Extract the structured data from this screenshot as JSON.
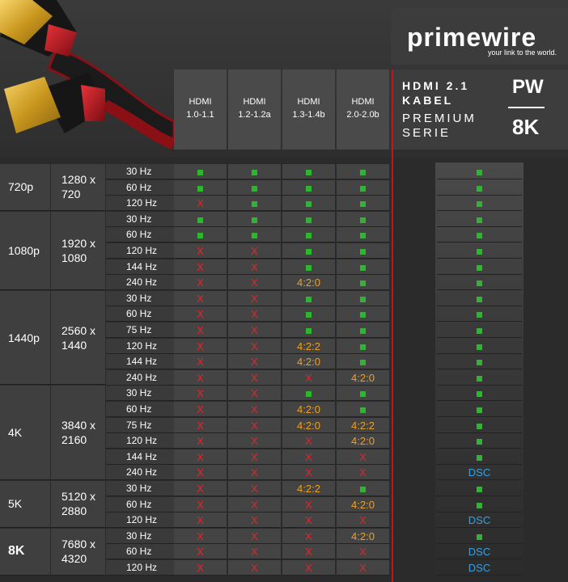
{
  "brand": {
    "logo": "primewire",
    "tagline": "your link to the world.",
    "mark": "PW"
  },
  "premium": {
    "line1": "HDMI 2.1",
    "line2": "KABEL",
    "line3": "PREMIUM",
    "line4": "SERIE",
    "resolution": "8K"
  },
  "columns": [
    {
      "name": "HDMI",
      "version": "1.0-1.1"
    },
    {
      "name": "HDMI",
      "version": "1.2-1.2a"
    },
    {
      "name": "HDMI",
      "version": "1.3-1.4b"
    },
    {
      "name": "HDMI",
      "version": "2.0-2.0b"
    }
  ],
  "groups": [
    {
      "label": "720p",
      "res1": "1280 x",
      "res2": "720",
      "rows": [
        {
          "hz": "30 Hz",
          "v": [
            "ok",
            "ok",
            "ok",
            "ok",
            "ok"
          ]
        },
        {
          "hz": "60 Hz",
          "v": [
            "ok",
            "ok",
            "ok",
            "ok",
            "ok"
          ]
        },
        {
          "hz": "120 Hz",
          "v": [
            "x",
            "ok",
            "ok",
            "ok",
            "ok"
          ]
        }
      ]
    },
    {
      "label": "1080p",
      "res1": "1920 x",
      "res2": "1080",
      "rows": [
        {
          "hz": "30 Hz",
          "v": [
            "ok",
            "ok",
            "ok",
            "ok",
            "ok"
          ]
        },
        {
          "hz": "60 Hz",
          "v": [
            "ok",
            "ok",
            "ok",
            "ok",
            "ok"
          ]
        },
        {
          "hz": "120 Hz",
          "v": [
            "x",
            "x",
            "ok",
            "ok",
            "ok"
          ]
        },
        {
          "hz": "144 Hz",
          "v": [
            "x",
            "x",
            "ok",
            "ok",
            "ok"
          ]
        },
        {
          "hz": "240 Hz",
          "v": [
            "x",
            "x",
            "4:2:0",
            "ok",
            "ok"
          ]
        }
      ]
    },
    {
      "label": "1440p",
      "res1": "2560 x",
      "res2": "1440",
      "rows": [
        {
          "hz": "30 Hz",
          "v": [
            "x",
            "x",
            "ok",
            "ok",
            "ok"
          ]
        },
        {
          "hz": "60 Hz",
          "v": [
            "x",
            "x",
            "ok",
            "ok",
            "ok"
          ]
        },
        {
          "hz": "75 Hz",
          "v": [
            "x",
            "x",
            "ok",
            "ok",
            "ok"
          ]
        },
        {
          "hz": "120 Hz",
          "v": [
            "x",
            "x",
            "4:2:2",
            "ok",
            "ok"
          ]
        },
        {
          "hz": "144 Hz",
          "v": [
            "x",
            "x",
            "4:2:0",
            "ok",
            "ok"
          ]
        },
        {
          "hz": "240 Hz",
          "v": [
            "x",
            "x",
            "x",
            "4:2:0",
            "ok"
          ]
        }
      ]
    },
    {
      "label": "4K",
      "res1": "3840 x",
      "res2": "2160",
      "rows": [
        {
          "hz": "30 Hz",
          "v": [
            "x",
            "x",
            "ok",
            "ok",
            "ok"
          ]
        },
        {
          "hz": "60 Hz",
          "v": [
            "x",
            "x",
            "4:2:0",
            "ok",
            "ok"
          ]
        },
        {
          "hz": "75 Hz",
          "v": [
            "x",
            "x",
            "4:2:0",
            "4:2:2",
            "ok"
          ]
        },
        {
          "hz": "120 Hz",
          "v": [
            "x",
            "x",
            "x",
            "4:2:0",
            "ok"
          ]
        },
        {
          "hz": "144 Hz",
          "v": [
            "x",
            "x",
            "x",
            "x",
            "ok"
          ]
        },
        {
          "hz": "240 Hz",
          "v": [
            "x",
            "x",
            "x",
            "x",
            "DSC"
          ]
        }
      ]
    },
    {
      "label": "5K",
      "res1": "5120 x",
      "res2": "2880",
      "rows": [
        {
          "hz": "30 Hz",
          "v": [
            "x",
            "x",
            "4:2:2",
            "ok",
            "ok"
          ]
        },
        {
          "hz": "60 Hz",
          "v": [
            "x",
            "x",
            "x",
            "4:2:0",
            "ok"
          ]
        },
        {
          "hz": "120 Hz",
          "v": [
            "x",
            "x",
            "x",
            "x",
            "DSC"
          ]
        }
      ]
    },
    {
      "label": "8K",
      "res1": "7680 x",
      "res2": "4320",
      "bold": true,
      "rows": [
        {
          "hz": "30 Hz",
          "v": [
            "x",
            "x",
            "x",
            "4:2:0",
            "ok"
          ]
        },
        {
          "hz": "60 Hz",
          "v": [
            "x",
            "x",
            "x",
            "x",
            "DSC"
          ]
        },
        {
          "hz": "120 Hz",
          "v": [
            "x",
            "x",
            "x",
            "x",
            "DSC"
          ]
        }
      ]
    }
  ],
  "symbols": {
    "x": "X",
    "ok": "■"
  },
  "colors": {
    "ok": "#2fb52f",
    "x": "#e0262d",
    "subsample": "#f0a020",
    "dsc": "#3ba0dc",
    "accent": "#c0151c"
  }
}
